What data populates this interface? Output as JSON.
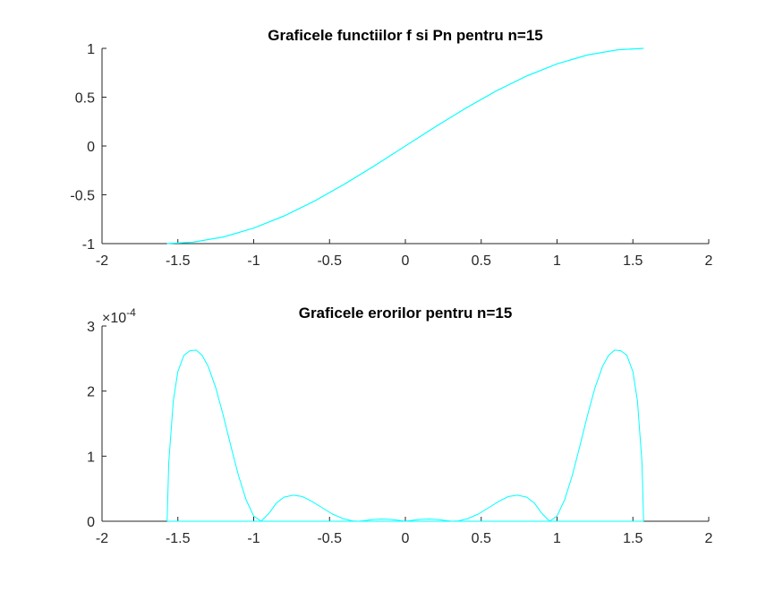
{
  "chart_data": [
    {
      "type": "line",
      "title": "Graficele functiilor f si Pn pentru n=15",
      "xlabel": "",
      "ylabel": "",
      "xlim": [
        -2,
        2
      ],
      "ylim": [
        -1,
        1
      ],
      "xticks": [
        "-2",
        "-1.5",
        "-1",
        "-0.5",
        "0",
        "0.5",
        "1",
        "1.5",
        "2"
      ],
      "yticks": [
        "1",
        "0.5",
        "0",
        "-0.5",
        "-1"
      ],
      "grid": false,
      "series": [
        {
          "color": "#00ffff",
          "x": [
            -1.5708,
            -1.4,
            -1.2,
            -1.0,
            -0.8,
            -0.6,
            -0.4,
            -0.2,
            0,
            0.2,
            0.4,
            0.6,
            0.8,
            1.0,
            1.2,
            1.4,
            1.5708
          ],
          "y": [
            -1.0,
            -0.985,
            -0.932,
            -0.841,
            -0.717,
            -0.565,
            -0.389,
            -0.199,
            0,
            0.199,
            0.389,
            0.565,
            0.717,
            0.841,
            0.932,
            0.985,
            1.0
          ]
        },
        {
          "color": "#00ffff",
          "x": [
            -1.5708,
            -1.4,
            -1.2,
            -1.0,
            -0.8,
            -0.6,
            -0.4,
            -0.2,
            0,
            0.2,
            0.4,
            0.6,
            0.8,
            1.0,
            1.2,
            1.4,
            1.5708
          ],
          "y": [
            -1.0,
            -0.985,
            -0.932,
            -0.841,
            -0.717,
            -0.565,
            -0.389,
            -0.199,
            0,
            0.199,
            0.389,
            0.565,
            0.717,
            0.841,
            0.932,
            0.985,
            1.0
          ]
        }
      ]
    },
    {
      "type": "line",
      "title": "Graficele erorilor pentru n=15",
      "xlabel": "",
      "ylabel": "",
      "exponent_label": "×10",
      "exponent_power": "-4",
      "xlim": [
        -2,
        2
      ],
      "ylim": [
        0,
        3
      ],
      "xticks": [
        "-2",
        "-1.5",
        "-1",
        "-0.5",
        "0",
        "0.5",
        "1",
        "1.5",
        "2"
      ],
      "yticks": [
        "3",
        "2",
        "1",
        "0"
      ],
      "grid": false,
      "series": [
        {
          "color": "#00ffff",
          "x": [
            -1.5708,
            -1.56,
            -1.53,
            -1.5,
            -1.46,
            -1.42,
            -1.38,
            -1.34,
            -1.3,
            -1.25,
            -1.2,
            -1.15,
            -1.1,
            -1.05,
            -1.0,
            -0.951,
            -0.9,
            -0.85,
            -0.8,
            -0.74,
            -0.68,
            -0.62,
            -0.55,
            -0.48,
            -0.41,
            -0.35,
            -0.309,
            -0.27,
            -0.22,
            -0.16,
            -0.1,
            -0.05,
            0,
            0.05,
            0.1,
            0.16,
            0.22,
            0.27,
            0.309,
            0.35,
            0.41,
            0.48,
            0.55,
            0.62,
            0.68,
            0.74,
            0.8,
            0.85,
            0.9,
            0.951,
            1.0,
            1.05,
            1.1,
            1.15,
            1.2,
            1.25,
            1.3,
            1.34,
            1.38,
            1.42,
            1.46,
            1.5,
            1.53,
            1.56,
            1.5708
          ],
          "y": [
            0,
            0.9,
            1.85,
            2.3,
            2.55,
            2.62,
            2.63,
            2.55,
            2.38,
            2.05,
            1.62,
            1.15,
            0.7,
            0.33,
            0.08,
            0,
            0.12,
            0.28,
            0.37,
            0.4,
            0.38,
            0.31,
            0.21,
            0.11,
            0.04,
            0.005,
            0,
            0.008,
            0.025,
            0.035,
            0.03,
            0.015,
            0,
            0.015,
            0.03,
            0.035,
            0.025,
            0.008,
            0,
            0.005,
            0.04,
            0.11,
            0.21,
            0.31,
            0.38,
            0.4,
            0.37,
            0.28,
            0.12,
            0,
            0.08,
            0.33,
            0.7,
            1.15,
            1.62,
            2.05,
            2.38,
            2.55,
            2.63,
            2.62,
            2.55,
            2.3,
            1.85,
            0.9,
            0
          ]
        },
        {
          "color": "#00ffff",
          "x": [
            -1.5708,
            1.5708
          ],
          "y": [
            0,
            0
          ]
        }
      ]
    }
  ]
}
